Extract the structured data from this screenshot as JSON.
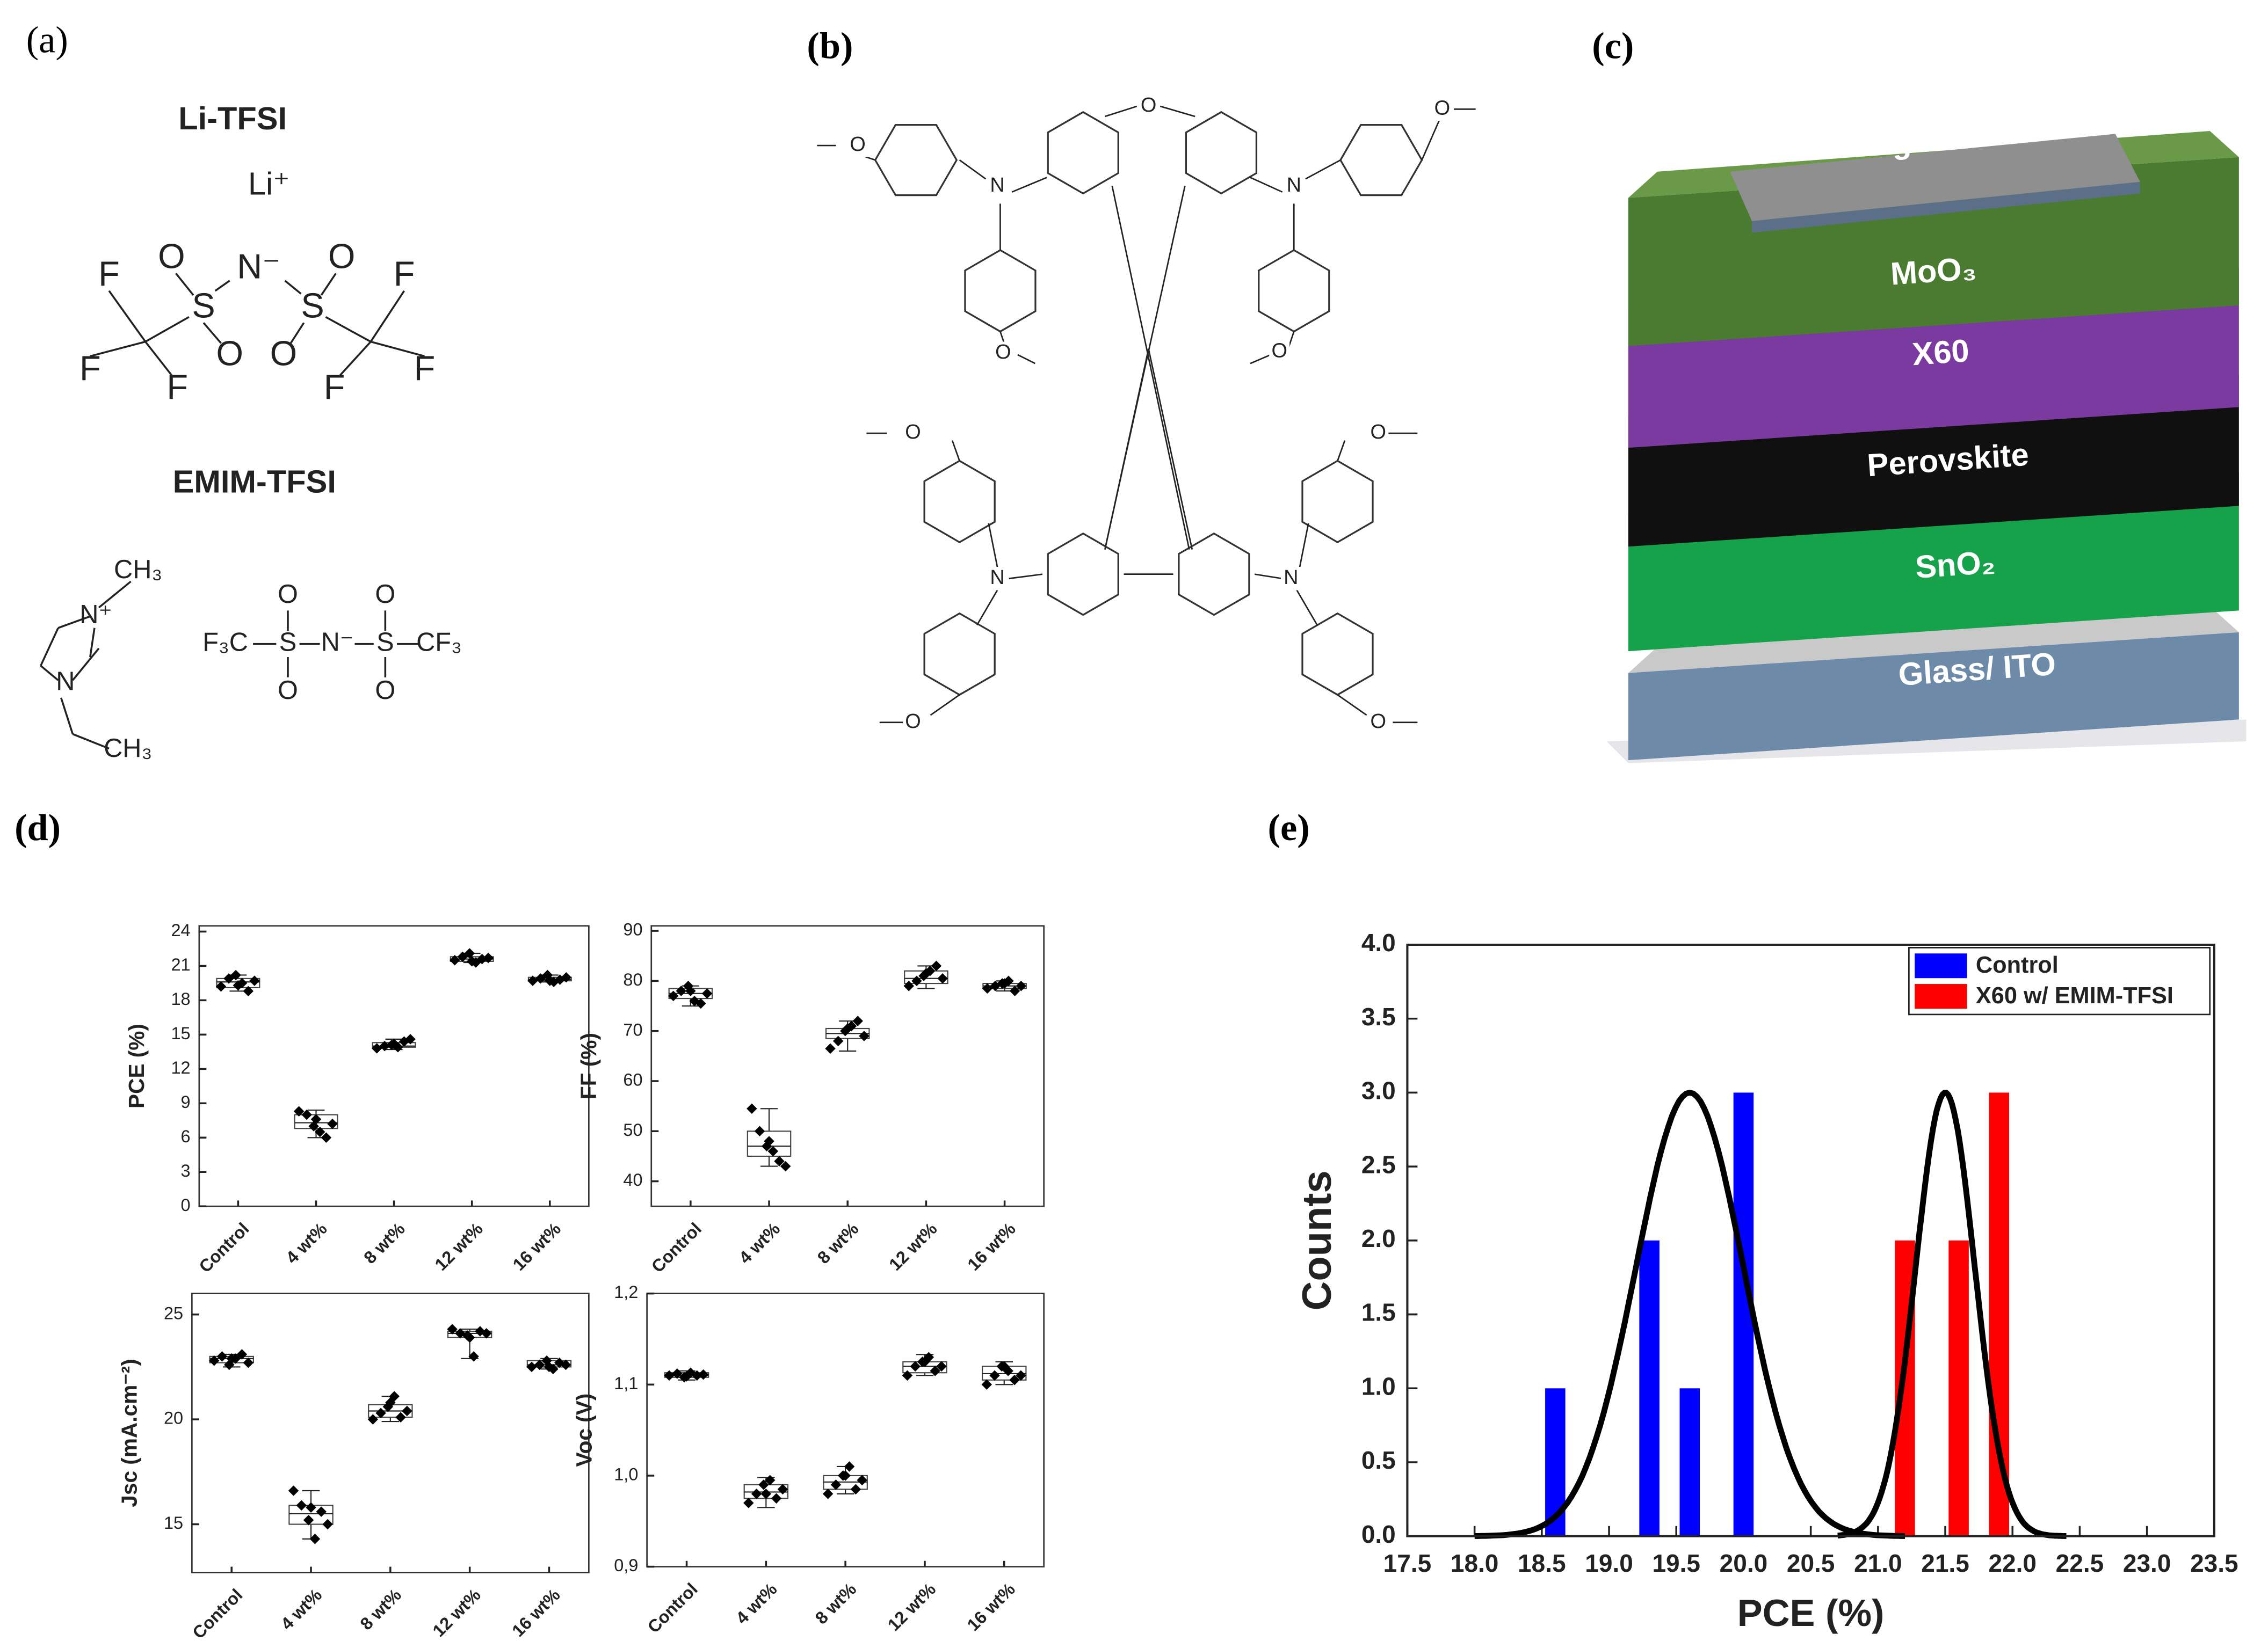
{
  "panels": {
    "a": "(a)",
    "b": "(b)",
    "c": "(c)",
    "d": "(d)",
    "e": "(e)"
  },
  "panel_a": {
    "salt1": "Li-TFSI",
    "cation1": "Li⁺",
    "atoms1": [
      "F",
      "O",
      "S",
      "N⁻",
      "S",
      "O",
      "F",
      "O",
      "O",
      "F",
      "F",
      "F",
      "F"
    ],
    "salt2": "EMIM-TFSI",
    "cation2": [
      "CH₃",
      "N⁺",
      "N",
      "CH₃"
    ],
    "anion2": [
      "F₃C",
      "S",
      "N⁻",
      "S",
      "CF₃",
      "O",
      "O",
      "O",
      "O"
    ]
  },
  "panel_b": {
    "atoms": [
      "O",
      "O",
      "O",
      "O",
      "O",
      "O",
      "O",
      "O",
      "O",
      "N",
      "N",
      "N",
      "N"
    ]
  },
  "panel_c": {
    "layers": [
      "Ag",
      "MoO₃",
      "X60",
      "Perovskite",
      "SnO₂",
      "Glass/ ITO"
    ]
  },
  "chart_data": [
    {
      "type": "box",
      "ylabel": "PCE (%)",
      "categories": [
        "Control",
        "4 wt%",
        "8 wt%",
        "12 wt%",
        "16 wt%"
      ],
      "ylim": [
        0,
        24.5
      ],
      "yticks": [
        0,
        3,
        6,
        9,
        12,
        15,
        18,
        21,
        24
      ],
      "boxes": [
        [
          18.8,
          19.1,
          19.6,
          19.9,
          20.2
        ],
        [
          6.0,
          6.8,
          7.3,
          8.0,
          8.4
        ],
        [
          13.7,
          13.9,
          14.0,
          14.3,
          14.6
        ],
        [
          21.3,
          21.4,
          21.6,
          21.8,
          22.1
        ],
        [
          19.6,
          19.7,
          19.8,
          20.0,
          20.2
        ]
      ],
      "points": [
        [
          19.2,
          19.9,
          20.2,
          19.5,
          18.8,
          19.7,
          19.3
        ],
        [
          8.3,
          8.0,
          7.0,
          6.5,
          6.0,
          7.2,
          7.6
        ],
        [
          13.8,
          14.0,
          14.1,
          13.9,
          14.4,
          14.6,
          14.2
        ],
        [
          21.5,
          21.8,
          22.1,
          21.3,
          21.6,
          21.7,
          21.4
        ],
        [
          19.7,
          19.9,
          20.2,
          19.6,
          19.8,
          20.0,
          19.7
        ]
      ]
    },
    {
      "type": "box",
      "ylabel": "FF (%)",
      "categories": [
        "Control",
        "4 wt%",
        "8 wt%",
        "12 wt%",
        "16 wt%"
      ],
      "ylim": [
        35,
        91
      ],
      "yticks": [
        40,
        50,
        60,
        70,
        80,
        90
      ],
      "boxes": [
        [
          75,
          76.5,
          77.5,
          78.5,
          79
        ],
        [
          43,
          45,
          47,
          50,
          54.5
        ],
        [
          66,
          68.5,
          69.5,
          70.5,
          72
        ],
        [
          78.5,
          79.5,
          80.5,
          82,
          83
        ],
        [
          78,
          78.5,
          79,
          79.5,
          80
        ]
      ],
      "points": [
        [
          77,
          78,
          79,
          76,
          75.5,
          77.5,
          78
        ],
        [
          54.5,
          50,
          47,
          46,
          44,
          43,
          48
        ],
        [
          66.5,
          68,
          70,
          71,
          72,
          69,
          70.5
        ],
        [
          79,
          80,
          81,
          82,
          83,
          80.5,
          81.5
        ],
        [
          78.5,
          79,
          79.5,
          80,
          78,
          79,
          79.5
        ]
      ]
    },
    {
      "type": "box",
      "ylabel": "Jsc (mA.cm⁻²)",
      "categories": [
        "Control",
        "4 wt%",
        "8 wt%",
        "12 wt%",
        "16 wt%"
      ],
      "ylim": [
        12.7,
        26
      ],
      "yticks": [
        15,
        20,
        25
      ],
      "boxes": [
        [
          22.5,
          22.7,
          22.9,
          23.0,
          23.1
        ],
        [
          14.3,
          15.0,
          15.5,
          15.9,
          16.6
        ],
        [
          19.9,
          20.1,
          20.4,
          20.7,
          21.1
        ],
        [
          22.9,
          23.9,
          24.1,
          24.2,
          24.3
        ],
        [
          22.4,
          22.5,
          22.6,
          22.8,
          22.9
        ]
      ],
      "points": [
        [
          22.8,
          23.0,
          22.6,
          22.9,
          23.1,
          22.7,
          22.9
        ],
        [
          16.6,
          15.9,
          15.2,
          14.3,
          15.6,
          15.0,
          15.8
        ],
        [
          20.0,
          20.3,
          20.6,
          21.1,
          20.1,
          20.4,
          20.8
        ],
        [
          24.3,
          24.1,
          24.0,
          23.0,
          24.2,
          24.1,
          23.9
        ],
        [
          22.5,
          22.6,
          22.8,
          22.4,
          22.7,
          22.6,
          22.5
        ]
      ]
    },
    {
      "type": "box",
      "ylabel": "Voc (V)",
      "categories": [
        "Control",
        "4 wt%",
        "8 wt%",
        "12 wt%",
        "16 wt%"
      ],
      "ylim": [
        0.9,
        1.2
      ],
      "yticks": [
        {
          "value": 0.9,
          "label": "0,9"
        },
        {
          "value": 1.0,
          "label": "1,0"
        },
        {
          "value": 1.1,
          "label": "1,1"
        },
        {
          "value": 1.2,
          "label": "1,2"
        }
      ],
      "boxes": [
        [
          1.105,
          1.108,
          1.11,
          1.113,
          1.115
        ],
        [
          0.965,
          0.975,
          0.982,
          0.99,
          0.998
        ],
        [
          0.98,
          0.985,
          0.993,
          1.0,
          1.01
        ],
        [
          1.11,
          1.113,
          1.12,
          1.125,
          1.133
        ],
        [
          1.1,
          1.105,
          1.112,
          1.12,
          1.125
        ]
      ],
      "points": [
        [
          1.11,
          1.112,
          1.108,
          1.113,
          1.11,
          1.111,
          1.109
        ],
        [
          0.97,
          0.98,
          0.99,
          0.995,
          0.975,
          0.985,
          0.98
        ],
        [
          0.98,
          0.99,
          1.0,
          1.01,
          0.985,
          0.995,
          1.0
        ],
        [
          1.11,
          1.12,
          1.125,
          1.13,
          1.115,
          1.12,
          1.125
        ],
        [
          1.1,
          1.11,
          1.12,
          1.115,
          1.105,
          1.11,
          1.12
        ]
      ]
    },
    {
      "type": "bar",
      "xlabel": "PCE (%)",
      "ylabel": "Counts",
      "legend": "upper right",
      "series": [
        {
          "name": "Control",
          "color": "#0000ff",
          "x": [
            18.6,
            19.3,
            19.6,
            20.0
          ],
          "values": [
            1,
            2,
            1,
            3
          ]
        },
        {
          "name": "X60 w/ EMIM-TFSI",
          "color": "#ff0000",
          "x": [
            21.2,
            21.6,
            21.9
          ],
          "values": [
            2,
            2,
            3
          ]
        }
      ],
      "fits": [
        {
          "mean": 19.6,
          "sd": 0.4,
          "peak": 3,
          "range": [
            18.0,
            21.2
          ]
        },
        {
          "mean": 21.5,
          "sd": 0.22,
          "peak": 3,
          "range": [
            20.7,
            22.4
          ]
        }
      ],
      "fit_color": "#000000",
      "xlim": [
        17.5,
        23.5
      ],
      "xticks": [
        17.5,
        {
          "value": 18,
          "label": "18.0"
        },
        18.5,
        {
          "value": 19,
          "label": "19.0"
        },
        19.5,
        {
          "value": 20,
          "label": "20.0"
        },
        20.5,
        {
          "value": 21,
          "label": "21.0"
        },
        21.5,
        {
          "value": 22,
          "label": "22.0"
        },
        22.5,
        {
          "value": 23,
          "label": "23.0"
        },
        23.5
      ],
      "ylim": [
        0,
        4
      ],
      "yticks": [
        {
          "value": 0,
          "label": "0.0"
        },
        0.5,
        {
          "value": 1,
          "label": "1.0"
        },
        1.5,
        {
          "value": 2,
          "label": "2.0"
        },
        2.5,
        {
          "value": 3,
          "label": "3.0"
        },
        3.5,
        {
          "value": 4,
          "label": "4.0"
        }
      ]
    }
  ]
}
